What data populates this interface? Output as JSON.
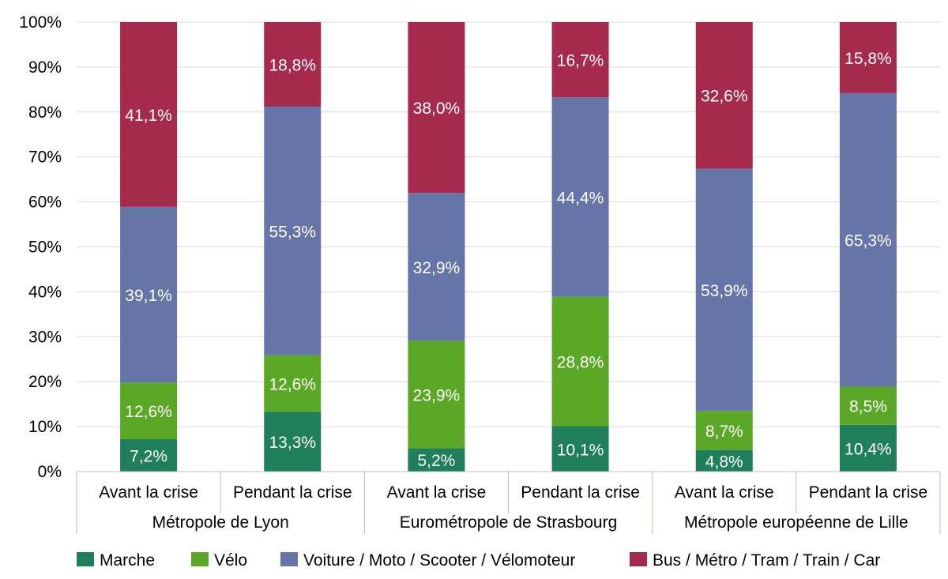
{
  "chart_data": {
    "type": "bar",
    "stacked": true,
    "ylim": [
      0,
      100
    ],
    "yticks": [
      "0%",
      "10%",
      "20%",
      "30%",
      "40%",
      "50%",
      "60%",
      "70%",
      "80%",
      "90%",
      "100%"
    ],
    "grid": true,
    "legend_position": "bottom",
    "groups": [
      {
        "label": "Métropole de Lyon",
        "categories": [
          "Avant la crise",
          "Pendant la crise"
        ]
      },
      {
        "label": "Eurométropole de Strasbourg",
        "categories": [
          "Avant la crise",
          "Pendant la crise"
        ]
      },
      {
        "label": "Métropole européenne de Lille",
        "categories": [
          "Avant la crise",
          "Pendant la crise"
        ]
      }
    ],
    "series": [
      {
        "name": "Marche",
        "color": "#1f7f5a",
        "values": [
          7.2,
          13.3,
          5.2,
          10.1,
          4.8,
          10.4
        ],
        "labels": [
          "7,2%",
          "13,3%",
          "5,2%",
          "10,1%",
          "4,8%",
          "10,4%"
        ]
      },
      {
        "name": "Vélo",
        "color": "#5aa826",
        "values": [
          12.6,
          12.6,
          23.9,
          28.8,
          8.7,
          8.5
        ],
        "labels": [
          "12,6%",
          "12,6%",
          "23,9%",
          "28,8%",
          "8,7%",
          "8,5%"
        ]
      },
      {
        "name": "Voiture / Moto / Scooter / Vélomoteur",
        "color": "#6575a8",
        "values": [
          39.1,
          55.3,
          32.9,
          44.4,
          53.9,
          65.3
        ],
        "labels": [
          "39,1%",
          "55,3%",
          "32,9%",
          "44,4%",
          "53,9%",
          "65,3%"
        ]
      },
      {
        "name": "Bus / Métro / Tram / Train / Car",
        "color": "#a6294e",
        "values": [
          41.1,
          18.8,
          38.0,
          16.7,
          32.6,
          15.8
        ],
        "labels": [
          "41,1%",
          "18,8%",
          "38,0%",
          "16,7%",
          "32,6%",
          "15,8%"
        ]
      }
    ]
  }
}
